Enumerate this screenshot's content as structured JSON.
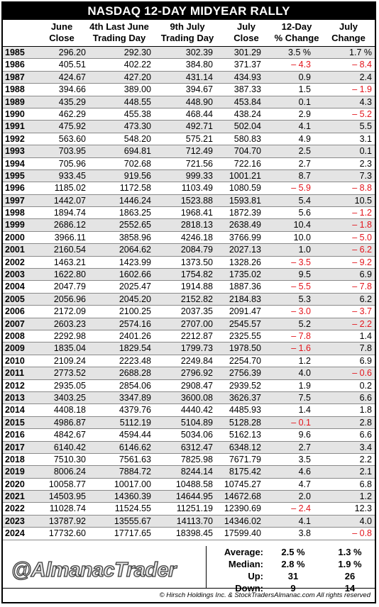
{
  "title": "NASDAQ 12-DAY MIDYEAR RALLY",
  "headers": [
    [
      "June",
      "Close"
    ],
    [
      "4th Last June",
      "Trading Day"
    ],
    [
      "9th July",
      "Trading Day"
    ],
    [
      "July",
      "Close"
    ],
    [
      "12-Day",
      "% Change"
    ],
    [
      "July",
      "Change"
    ]
  ],
  "rows": [
    [
      "1985",
      "296.20",
      "292.30",
      "302.39",
      "301.29",
      "3.5 %",
      "1.7 %"
    ],
    [
      "1986",
      "405.51",
      "402.22",
      "384.80",
      "371.37",
      "– 4.3",
      "– 8.4"
    ],
    [
      "1987",
      "424.67",
      "427.20",
      "431.14",
      "434.93",
      "0.9",
      "2.4"
    ],
    [
      "1988",
      "394.66",
      "389.00",
      "394.67",
      "387.33",
      "1.5",
      "– 1.9"
    ],
    [
      "1989",
      "435.29",
      "448.55",
      "448.90",
      "453.84",
      "0.1",
      "4.3"
    ],
    [
      "1990",
      "462.29",
      "455.38",
      "468.44",
      "438.24",
      "2.9",
      "– 5.2"
    ],
    [
      "1991",
      "475.92",
      "473.30",
      "492.71",
      "502.04",
      "4.1",
      "5.5"
    ],
    [
      "1992",
      "563.60",
      "548.20",
      "575.21",
      "580.83",
      "4.9",
      "3.1"
    ],
    [
      "1993",
      "703.95",
      "694.81",
      "712.49",
      "704.70",
      "2.5",
      "0.1"
    ],
    [
      "1994",
      "705.96",
      "702.68",
      "721.56",
      "722.16",
      "2.7",
      "2.3"
    ],
    [
      "1995",
      "933.45",
      "919.56",
      "999.33",
      "1001.21",
      "8.7",
      "7.3"
    ],
    [
      "1996",
      "1185.02",
      "1172.58",
      "1103.49",
      "1080.59",
      "– 5.9",
      "– 8.8"
    ],
    [
      "1997",
      "1442.07",
      "1446.24",
      "1523.88",
      "1593.81",
      "5.4",
      "10.5"
    ],
    [
      "1998",
      "1894.74",
      "1863.25",
      "1968.41",
      "1872.39",
      "5.6",
      "– 1.2"
    ],
    [
      "1999",
      "2686.12",
      "2552.65",
      "2818.13",
      "2638.49",
      "10.4",
      "– 1.8"
    ],
    [
      "2000",
      "3966.11",
      "3858.96",
      "4246.18",
      "3766.99",
      "10.0",
      "– 5.0"
    ],
    [
      "2001",
      "2160.54",
      "2064.62",
      "2084.79",
      "2027.13",
      "1.0",
      "– 6.2"
    ],
    [
      "2002",
      "1463.21",
      "1423.99",
      "1373.50",
      "1328.26",
      "– 3.5",
      "– 9.2"
    ],
    [
      "2003",
      "1622.80",
      "1602.66",
      "1754.82",
      "1735.02",
      "9.5",
      "6.9"
    ],
    [
      "2004",
      "2047.79",
      "2025.47",
      "1914.88",
      "1887.36",
      "– 5.5",
      "– 7.8"
    ],
    [
      "2005",
      "2056.96",
      "2045.20",
      "2152.82",
      "2184.83",
      "5.3",
      "6.2"
    ],
    [
      "2006",
      "2172.09",
      "2100.25",
      "2037.35",
      "2091.47",
      "– 3.0",
      "– 3.7"
    ],
    [
      "2007",
      "2603.23",
      "2574.16",
      "2707.00",
      "2545.57",
      "5.2",
      "– 2.2"
    ],
    [
      "2008",
      "2292.98",
      "2401.26",
      "2212.87",
      "2325.55",
      "– 7.8",
      "1.4"
    ],
    [
      "2009",
      "1835.04",
      "1829.54",
      "1799.73",
      "1978.50",
      "– 1.6",
      "7.8"
    ],
    [
      "2010",
      "2109.24",
      "2223.48",
      "2249.84",
      "2254.70",
      "1.2",
      "6.9"
    ],
    [
      "2011",
      "2773.52",
      "2688.28",
      "2796.92",
      "2756.39",
      "4.0",
      "– 0.6"
    ],
    [
      "2012",
      "2935.05",
      "2854.06",
      "2908.47",
      "2939.52",
      "1.9",
      "0.2"
    ],
    [
      "2013",
      "3403.25",
      "3347.89",
      "3600.08",
      "3626.37",
      "7.5",
      "6.6"
    ],
    [
      "2014",
      "4408.18",
      "4379.76",
      "4440.42",
      "4485.93",
      "1.4",
      "1.8"
    ],
    [
      "2015",
      "4986.87",
      "5112.19",
      "5104.89",
      "5128.28",
      "– 0.1",
      "2.8"
    ],
    [
      "2016",
      "4842.67",
      "4594.44",
      "5034.06",
      "5162.13",
      "9.6",
      "6.6"
    ],
    [
      "2017",
      "6140.42",
      "6146.62",
      "6312.47",
      "6348.12",
      "2.7",
      "3.4"
    ],
    [
      "2018",
      "7510.30",
      "7561.63",
      "7825.98",
      "7671.79",
      "3.5",
      "2.2"
    ],
    [
      "2019",
      "8006.24",
      "7884.72",
      "8244.14",
      "8175.42",
      "4.6",
      "2.1"
    ],
    [
      "2020",
      "10058.77",
      "10017.00",
      "10488.58",
      "10745.27",
      "4.7",
      "6.8"
    ],
    [
      "2021",
      "14503.95",
      "14360.39",
      "14644.95",
      "14672.68",
      "2.0",
      "1.2"
    ],
    [
      "2022",
      "11028.74",
      "11524.55",
      "11251.19",
      "12390.69",
      "– 2.4",
      "12.3"
    ],
    [
      "2023",
      "13787.92",
      "13555.67",
      "14113.70",
      "14346.02",
      "4.1",
      "4.0"
    ],
    [
      "2024",
      "17732.60",
      "17717.65",
      "18398.45",
      "17599.40",
      "3.8",
      "– 0.8"
    ]
  ],
  "summary": [
    {
      "label": "Average:",
      "v1": "2.5 %",
      "v2": "1.3 %"
    },
    {
      "label": "Median:",
      "v1": "2.8 %",
      "v2": "1.9 %"
    },
    {
      "label": "Up:",
      "v1": "31",
      "v2": "26"
    },
    {
      "label": "Down:",
      "v1": "9",
      "v2": "14"
    }
  ],
  "watermark": "@AlmanacTrader",
  "footer": "© Hirsch Holdings Inc. & StockTradersAlmanac.com All rights reserved",
  "colors": {
    "negative": "#e3141b",
    "stripe": "#e4e4e4",
    "title_bg": "#000000"
  }
}
